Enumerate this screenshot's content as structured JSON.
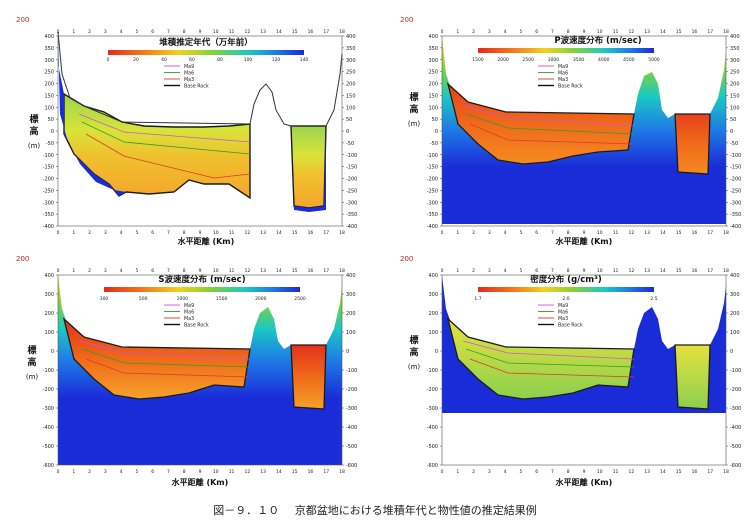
{
  "figure_caption": {
    "label": "図－９．１０",
    "text": "京都盆地における堆積年代と物性値の推定結果例"
  },
  "chart_data": [
    {
      "type": "heatmap",
      "title": "堆積推定年代（万年前）",
      "ylabel": "標高 (m)",
      "xlabel": "水平距離 (Km)",
      "ylim": [
        -400,
        400
      ],
      "y_ticks_left": [
        "400",
        "350",
        "300",
        "250",
        "200",
        "150",
        "100",
        "50",
        "0",
        "-50",
        "-100",
        "-150",
        "-200",
        "-250",
        "-300",
        "-350",
        "-400"
      ],
      "y_ticks_right": [
        "400",
        "350",
        "300",
        "250",
        "200",
        "150",
        "100",
        "50",
        "0",
        "-50",
        "-100",
        "-150",
        "-200",
        "-250",
        "-300",
        "-350",
        "-400"
      ],
      "top_red_label": "200",
      "x_ticks": [
        "0",
        "1",
        "2",
        "3",
        "4",
        "5",
        "6",
        "7",
        "8",
        "9",
        "10",
        "11",
        "12",
        "13",
        "14",
        "15",
        "16",
        "17",
        "18"
      ],
      "colorbar_ticks": [
        "0",
        "20",
        "40",
        "60",
        "80",
        "100",
        "120",
        "140"
      ],
      "legend": [
        "Ma9",
        "Ma6",
        "Ma3",
        "Base Rock"
      ]
    },
    {
      "type": "heatmap",
      "title": "P波速度分布 (m/sec)",
      "ylabel": "標高 (m)",
      "xlabel": "水平距離 (Km)",
      "ylim": [
        -400,
        400
      ],
      "y_ticks_left": [
        "400",
        "350",
        "300",
        "250",
        "200",
        "150",
        "100",
        "50",
        "0",
        "-50",
        "-100",
        "-150",
        "-200",
        "-250",
        "-300",
        "-350",
        "-400"
      ],
      "y_ticks_right": [
        "400",
        "350",
        "300",
        "250",
        "200",
        "150",
        "100",
        "50",
        "0",
        "-50",
        "-100",
        "-150",
        "-200",
        "-250",
        "-300",
        "-350",
        "-400"
      ],
      "top_red_label": "200",
      "x_ticks": [
        "0",
        "1",
        "2",
        "3",
        "4",
        "5",
        "6",
        "7",
        "8",
        "9",
        "10",
        "11",
        "12",
        "13",
        "14",
        "15",
        "16",
        "17",
        "18"
      ],
      "colorbar_ticks": [
        "1500",
        "2000",
        "2500",
        "3000",
        "3500",
        "4000",
        "4500",
        "5000"
      ],
      "legend": [
        "Ma9",
        "Ma6",
        "Ma3",
        "Base Rock"
      ]
    },
    {
      "type": "heatmap",
      "title": "S波速度分布 (m/sec)",
      "ylabel": "標高 (m)",
      "xlabel": "水平距離 (Km)",
      "ylim": [
        -600,
        400
      ],
      "y_ticks_left": [
        "400",
        "300",
        "200",
        "100",
        "0",
        "-100",
        "-200",
        "-300",
        "-400",
        "-500",
        "-600"
      ],
      "y_ticks_right": [
        "400",
        "300",
        "200",
        "100",
        "0",
        "-100",
        "-200",
        "-300",
        "-400",
        "-500",
        "-600"
      ],
      "top_red_label": "200",
      "x_ticks": [
        "0",
        "1",
        "2",
        "3",
        "4",
        "5",
        "6",
        "7",
        "8",
        "9",
        "10",
        "11",
        "12",
        "13",
        "14",
        "15",
        "16",
        "17",
        "18"
      ],
      "colorbar_ticks": [
        "300",
        "500",
        "1000",
        "1500",
        "2000",
        "2500"
      ],
      "legend": [
        "Ma9",
        "Ma6",
        "Ma3",
        "Base Rock"
      ]
    },
    {
      "type": "heatmap",
      "title": "密度分布 (g/cm³)",
      "ylabel": "標高 (m)",
      "xlabel": "水平距離 (Km)",
      "ylim": [
        -600,
        400
      ],
      "y_ticks_left": [
        "400",
        "300",
        "200",
        "100",
        "0",
        "-100",
        "-200",
        "-300",
        "-400",
        "-500",
        "-600"
      ],
      "y_ticks_right": [
        "400",
        "300",
        "200",
        "100",
        "0",
        "-100",
        "-200",
        "-300",
        "-400",
        "-500",
        "-600"
      ],
      "top_red_label": "200",
      "x_ticks": [
        "0",
        "1",
        "2",
        "3",
        "4",
        "5",
        "6",
        "7",
        "8",
        "9",
        "10",
        "11",
        "12",
        "13",
        "14",
        "15",
        "16",
        "17",
        "18"
      ],
      "colorbar_ticks": [
        "1.7",
        "2.0",
        "2.5"
      ],
      "legend": [
        "Ma9",
        "Ma6",
        "Ma3",
        "Base Rock"
      ]
    }
  ]
}
